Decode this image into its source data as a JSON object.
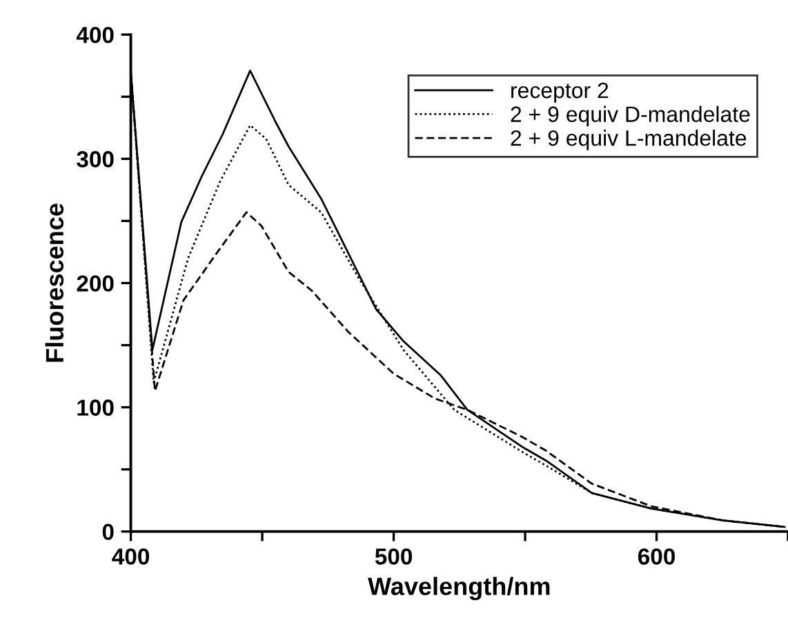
{
  "chart_data": {
    "type": "line",
    "xlabel": "Wavelength/nm",
    "ylabel": "Fluorescence",
    "xlim": [
      400,
      650
    ],
    "xticks": [
      400,
      {
        "value": 450,
        "label": null
      },
      500,
      {
        "value": 550,
        "label": null
      },
      600,
      {
        "value": 650,
        "label": null
      }
    ],
    "ylim": [
      0,
      400
    ],
    "yticks": [
      0,
      {
        "value": 50,
        "label": null
      },
      100,
      {
        "value": 150,
        "label": null
      },
      200,
      {
        "value": 250,
        "label": null
      },
      300,
      {
        "value": 350,
        "label": null
      },
      400
    ],
    "grid": false,
    "legend": "top right",
    "marker": "none",
    "series": [
      {
        "name": "receptor 2",
        "color": "#000000",
        "line_style": "solid",
        "x": [
          400,
          408.2,
          419.2,
          427,
          435,
          445.4,
          455,
          460,
          472.4,
          477.6,
          493.3,
          503.8,
          517.8,
          528,
          549,
          558,
          575.4,
          598,
          625,
          648.7
        ],
        "values": [
          370,
          146,
          249,
          286,
          320,
          371,
          330,
          310,
          268,
          246,
          179,
          153,
          126,
          98,
          68,
          57,
          31,
          18.5,
          9,
          3.7
        ]
      },
      {
        "name": "2 + 9 equiv D-mandelate",
        "color": "#000000",
        "line_style": "dotted",
        "x": [
          400,
          408.7,
          421.8,
          434,
          445.4,
          451.5,
          460,
          472.4,
          486.4,
          503.8,
          523,
          549,
          558,
          575.4,
          598,
          625,
          648.7
        ],
        "values": [
          370,
          120,
          220,
          282,
          327,
          316,
          279,
          257,
          205,
          146,
          98,
          64,
          53,
          31,
          18.5,
          9,
          3.7
        ]
      },
      {
        "name": "2 + 9 equiv L-mandelate",
        "color": "#000000",
        "line_style": "dashed",
        "x": [
          400,
          409.2,
          420,
          432.3,
          444,
          449.7,
          460,
          468.8,
          482.6,
          500,
          515.7,
          528,
          549,
          558,
          575.4,
          598,
          625,
          648.7
        ],
        "values": [
          370,
          113,
          186,
          223,
          257,
          246,
          209,
          194,
          161,
          127,
          107,
          98,
          76,
          65,
          38.5,
          20.3,
          9,
          3.7
        ]
      }
    ]
  }
}
